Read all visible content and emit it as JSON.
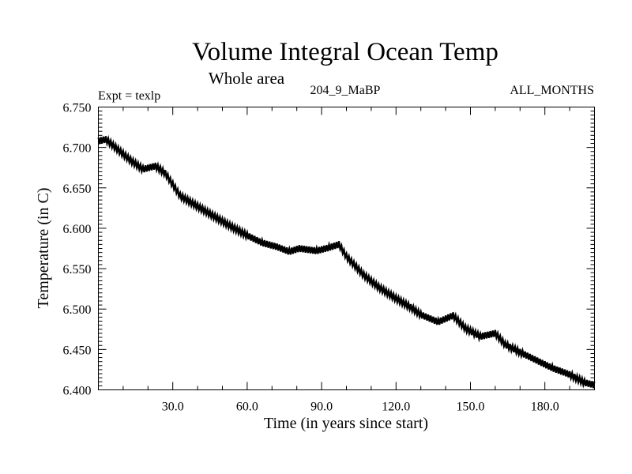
{
  "chart_data": {
    "type": "line",
    "title": "Volume Integral Ocean Temp",
    "subtitle": "Whole area",
    "annotations": {
      "left": "Expt = texlp",
      "center": "204_9_MaBP",
      "right": "ALL_MONTHS"
    },
    "xlabel": "Time (in years since start)",
    "ylabel": "Temperature (in C)",
    "xlim": [
      0,
      200
    ],
    "ylim": [
      6.4,
      6.75
    ],
    "x_ticks": [
      30,
      60,
      90,
      120,
      150,
      180
    ],
    "x_tick_labels": [
      "30.0",
      "60.0",
      "90.0",
      "120.0",
      "150.0",
      "180.0"
    ],
    "x_minor_step": 10,
    "y_ticks": [
      6.4,
      6.45,
      6.5,
      6.55,
      6.6,
      6.65,
      6.7,
      6.75
    ],
    "y_tick_labels": [
      "6.400",
      "6.450",
      "6.500",
      "6.550",
      "6.600",
      "6.650",
      "6.700",
      "6.750"
    ],
    "y_minor_step": 0.005,
    "grid": false,
    "legend": "none",
    "line_color": "#000000",
    "seasonal_amplitude": 0.004,
    "series": [
      {
        "name": "Volume integral ocean temperature",
        "x": [
          0,
          3,
          8,
          13,
          18,
          23,
          27,
          33,
          40,
          47,
          53,
          60,
          66,
          72,
          77,
          81,
          88,
          93,
          97,
          100,
          107,
          113,
          120,
          126,
          130,
          137,
          143,
          148,
          154,
          160,
          164,
          171,
          177,
          183,
          190,
          196,
          200
        ],
        "y": [
          6.708,
          6.71,
          6.697,
          6.684,
          6.673,
          6.677,
          6.668,
          6.64,
          6.627,
          6.614,
          6.603,
          6.591,
          6.582,
          6.577,
          6.571,
          6.575,
          6.572,
          6.576,
          6.58,
          6.565,
          6.542,
          6.527,
          6.513,
          6.502,
          6.493,
          6.484,
          6.492,
          6.476,
          6.466,
          6.47,
          6.456,
          6.445,
          6.436,
          6.427,
          6.419,
          6.409,
          6.406
        ]
      }
    ]
  }
}
